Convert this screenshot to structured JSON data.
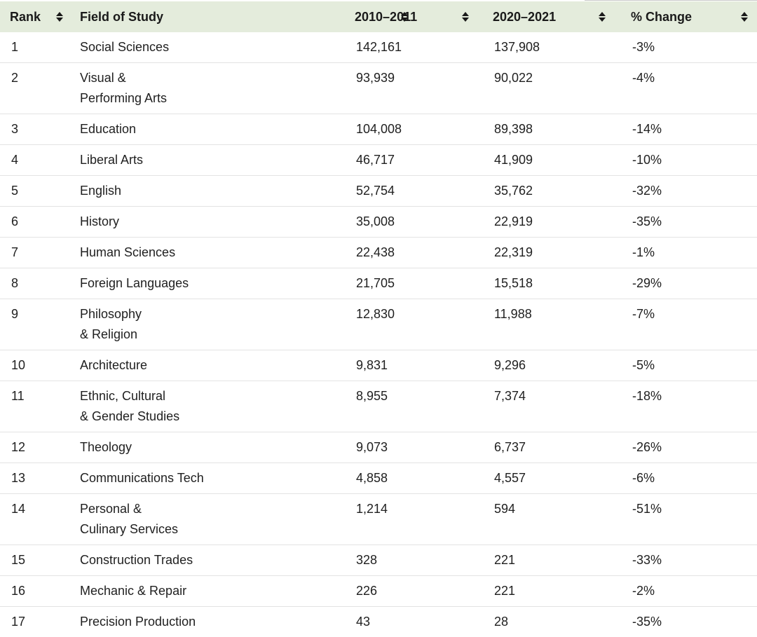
{
  "table": {
    "headers": {
      "rank": "Rank",
      "field": "Field of Study",
      "y1": "2010–2011",
      "y2": "2020–2021",
      "change": "% Change"
    },
    "sort_icon": "sort-updown-icon",
    "colors": {
      "header_bg": "#e4ecdc",
      "row_divider": "#e3e3e3",
      "text": "#1f1f1f"
    },
    "rows": [
      {
        "rank": "1",
        "field_line1": "Social Sciences",
        "field_line2": "",
        "y1": "142,161",
        "y2": "137,908",
        "change": "-3%"
      },
      {
        "rank": "2",
        "field_line1": "Visual &",
        "field_line2": "Performing Arts",
        "y1": "93,939",
        "y2": "90,022",
        "change": "-4%"
      },
      {
        "rank": "3",
        "field_line1": "Education",
        "field_line2": "",
        "y1": "104,008",
        "y2": "89,398",
        "change": "-14%"
      },
      {
        "rank": "4",
        "field_line1": "Liberal Arts",
        "field_line2": "",
        "y1": "46,717",
        "y2": "41,909",
        "change": "-10%"
      },
      {
        "rank": "5",
        "field_line1": "English",
        "field_line2": "",
        "y1": "52,754",
        "y2": "35,762",
        "change": "-32%"
      },
      {
        "rank": "6",
        "field_line1": "History",
        "field_line2": "",
        "y1": "35,008",
        "y2": "22,919",
        "change": "-35%"
      },
      {
        "rank": "7",
        "field_line1": "Human Sciences",
        "field_line2": "",
        "y1": "22,438",
        "y2": "22,319",
        "change": "-1%"
      },
      {
        "rank": "8",
        "field_line1": "Foreign Languages",
        "field_line2": "",
        "y1": "21,705",
        "y2": "15,518",
        "change": "-29%"
      },
      {
        "rank": "9",
        "field_line1": "Philosophy",
        "field_line2": "& Religion",
        "y1": "12,830",
        "y2": "11,988",
        "change": "-7%"
      },
      {
        "rank": "10",
        "field_line1": "Architecture",
        "field_line2": "",
        "y1": "9,831",
        "y2": "9,296",
        "change": "-5%"
      },
      {
        "rank": "11",
        "field_line1": "Ethnic, Cultural",
        "field_line2": "& Gender Studies",
        "y1": "8,955",
        "y2": "7,374",
        "change": "-18%"
      },
      {
        "rank": "12",
        "field_line1": "Theology",
        "field_line2": "",
        "y1": "9,073",
        "y2": "6,737",
        "change": "-26%"
      },
      {
        "rank": "13",
        "field_line1": "Communications Tech",
        "field_line2": "",
        "y1": "4,858",
        "y2": "4,557",
        "change": "-6%"
      },
      {
        "rank": "14",
        "field_line1": "Personal &",
        "field_line2": "Culinary Services",
        "y1": "1,214",
        "y2": "594",
        "change": "-51%"
      },
      {
        "rank": "15",
        "field_line1": "Construction Trades",
        "field_line2": "",
        "y1": "328",
        "y2": "221",
        "change": "-33%"
      },
      {
        "rank": "16",
        "field_line1": "Mechanic & Repair",
        "field_line2": "",
        "y1": "226",
        "y2": "221",
        "change": "-2%"
      },
      {
        "rank": "17",
        "field_line1": "Precision Production",
        "field_line2": "",
        "y1": "43",
        "y2": "28",
        "change": "-35%"
      }
    ]
  }
}
